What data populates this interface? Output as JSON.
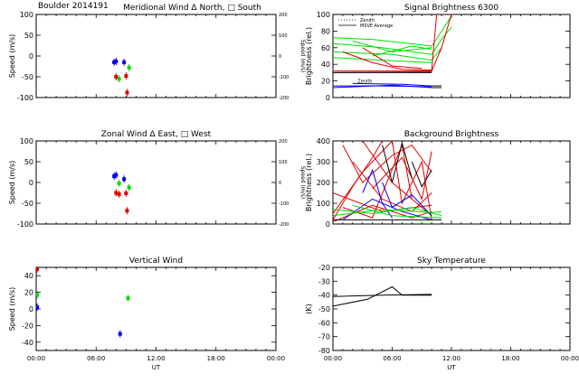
{
  "figure": {
    "header": "Boulder   2014191",
    "colors": {
      "red": "#e00000",
      "green": "#00dd00",
      "blue": "#0000ee",
      "black": "#000000"
    }
  },
  "chart_data": [
    {
      "id": "meridional",
      "type": "scatter",
      "title": "Meridional Wind   Δ North, □ South",
      "ylabel": "Speed (m/s)",
      "ylabel_right": "Speed (m/s)",
      "xlim": [
        0,
        24
      ],
      "ylim": [
        -100,
        100
      ],
      "ylim_right": [
        -200,
        200
      ],
      "yticks": [
        100,
        50,
        0,
        -50,
        -100
      ],
      "yticks_right": [
        200,
        100,
        0,
        -100,
        -200
      ],
      "series": [
        {
          "name": "blue",
          "color": "blue",
          "points": [
            [
              7.8,
              -15
            ],
            [
              8.0,
              -13
            ],
            [
              8.8,
              -15
            ]
          ]
        },
        {
          "name": "green",
          "color": "green",
          "points": [
            [
              8.3,
              -55
            ],
            [
              9.3,
              -28
            ]
          ]
        },
        {
          "name": "red",
          "color": "red",
          "points": [
            [
              8.0,
              -50
            ],
            [
              9.0,
              -48
            ],
            [
              9.1,
              -88
            ]
          ]
        }
      ]
    },
    {
      "id": "zonal",
      "type": "scatter",
      "title": "Zonal Wind     Δ East, □ West",
      "ylabel": "Speed (m/s)",
      "ylabel_right": "Speed (m/s)",
      "xlim": [
        0,
        24
      ],
      "ylim": [
        -100,
        100
      ],
      "ylim_right": [
        -200,
        200
      ],
      "yticks": [
        100,
        50,
        0,
        -50,
        -100
      ],
      "yticks_right": [
        200,
        100,
        0,
        -100,
        -200
      ],
      "series": [
        {
          "name": "blue",
          "color": "blue",
          "points": [
            [
              7.8,
              15
            ],
            [
              8.0,
              18
            ],
            [
              8.8,
              8
            ]
          ]
        },
        {
          "name": "green",
          "color": "green",
          "points": [
            [
              8.3,
              -2
            ],
            [
              9.3,
              -12
            ]
          ]
        },
        {
          "name": "red",
          "color": "red",
          "points": [
            [
              8.0,
              -25
            ],
            [
              8.3,
              -28
            ],
            [
              9.0,
              -26
            ],
            [
              9.1,
              -68
            ]
          ]
        }
      ]
    },
    {
      "id": "vertical",
      "type": "scatter",
      "title": "Vertical Wind",
      "ylabel": "Speed (m/s)",
      "xlabel": "UT",
      "xlim": [
        0,
        24
      ],
      "ylim": [
        -50,
        50
      ],
      "yticks": [
        40,
        20,
        0,
        -20,
        -40
      ],
      "xtick_labels": [
        "00:00",
        "06:00",
        "12:00",
        "18:00",
        "00:00"
      ],
      "series": [
        {
          "name": "red",
          "color": "red",
          "points": [
            [
              0.1,
              48
            ]
          ]
        },
        {
          "name": "green",
          "color": "green",
          "points": [
            [
              0.1,
              17
            ],
            [
              9.2,
              13
            ]
          ]
        },
        {
          "name": "blue",
          "color": "blue",
          "points": [
            [
              0.1,
              2
            ],
            [
              8.4,
              -30
            ]
          ]
        }
      ]
    },
    {
      "id": "signal",
      "type": "line",
      "title": "Signal Brightness        6300",
      "ylabel": "Brightness (rel.)",
      "xlim": [
        0,
        24
      ],
      "ylim": [
        0,
        100
      ],
      "yticks": [
        0,
        20,
        40,
        60,
        80,
        100
      ],
      "legend": {
        "entries": [
          "Zenith",
          "MSVE Average"
        ],
        "placement": "top-left"
      },
      "inline_label": "Zenith",
      "series": [
        {
          "name": "green-bundle",
          "color": "green",
          "lines": [
            [
              [
                0,
                72
              ],
              [
                4,
                70
              ],
              [
                10,
                62
              ],
              [
                11,
                80
              ],
              [
                12,
                98
              ]
            ],
            [
              [
                0,
                65
              ],
              [
                5,
                60
              ],
              [
                10,
                52
              ],
              [
                11,
                70
              ],
              [
                12,
                85
              ]
            ],
            [
              [
                0,
                55
              ],
              [
                6,
                52
              ],
              [
                10,
                45
              ],
              [
                11,
                60
              ]
            ],
            [
              [
                0,
                48
              ],
              [
                10,
                42
              ]
            ],
            [
              [
                2,
                68
              ],
              [
                6,
                55
              ],
              [
                10,
                60
              ]
            ],
            [
              [
                4,
                50
              ],
              [
                8,
                62
              ],
              [
                10,
                58
              ]
            ]
          ]
        },
        {
          "name": "red-bundle",
          "color": "red",
          "lines": [
            [
              [
                0,
                32
              ],
              [
                10,
                32
              ],
              [
                11,
                60
              ],
              [
                12,
                100
              ]
            ],
            [
              [
                0,
                30
              ],
              [
                10,
                31
              ]
            ],
            [
              [
                1,
                55
              ],
              [
                4,
                42
              ],
              [
                7,
                34
              ],
              [
                10,
                33
              ]
            ],
            [
              [
                3,
                60
              ],
              [
                6,
                38
              ],
              [
                9,
                35
              ]
            ],
            [
              [
                10,
                33
              ],
              [
                10.5,
                100
              ]
            ]
          ]
        },
        {
          "name": "blue-bundle",
          "color": "blue",
          "lines": [
            [
              [
                0,
                14
              ],
              [
                5,
                14
              ],
              [
                10,
                13
              ]
            ],
            [
              [
                0,
                12
              ],
              [
                6,
                15
              ],
              [
                10,
                12
              ]
            ],
            [
              [
                2,
                17
              ],
              [
                7,
                16
              ],
              [
                10,
                14
              ]
            ]
          ]
        },
        {
          "name": "black",
          "color": "black",
          "lines": [
            [
              [
                0,
                30
              ],
              [
                10,
                30
              ]
            ],
            [
              [
                10,
                12
              ],
              [
                11,
                12
              ]
            ],
            [
              [
                10,
                14
              ],
              [
                11,
                14
              ]
            ]
          ]
        }
      ]
    },
    {
      "id": "background",
      "type": "line",
      "title": "Background Brightness",
      "ylabel": "Brightness (rel.)",
      "xlim": [
        0,
        24
      ],
      "ylim": [
        0,
        400
      ],
      "yticks": [
        0,
        100,
        200,
        300,
        400
      ],
      "series": [
        {
          "name": "red-bundle",
          "color": "red",
          "lines": [
            [
              [
                0,
                20
              ],
              [
                2,
                180
              ],
              [
                4,
                320
              ],
              [
                5,
                400
              ]
            ],
            [
              [
                0,
                50
              ],
              [
                3,
                250
              ],
              [
                6,
                400
              ]
            ],
            [
              [
                1,
                80
              ],
              [
                4,
                30
              ],
              [
                7,
                380
              ],
              [
                8,
                120
              ]
            ],
            [
              [
                2,
                300
              ],
              [
                5,
                120
              ],
              [
                8,
                60
              ],
              [
                10,
                150
              ]
            ],
            [
              [
                3,
                400
              ],
              [
                6,
                200
              ],
              [
                9,
                80
              ],
              [
                10,
                40
              ]
            ],
            [
              [
                0,
                150
              ],
              [
                5,
                60
              ],
              [
                10,
                90
              ]
            ],
            [
              [
                6,
                400
              ],
              [
                7,
                100
              ],
              [
                9,
                300
              ],
              [
                10,
                20
              ]
            ],
            [
              [
                0,
                10
              ],
              [
                4,
                90
              ],
              [
                8,
                30
              ],
              [
                10,
                60
              ]
            ],
            [
              [
                1,
                380
              ],
              [
                3,
                200
              ],
              [
                6,
                330
              ],
              [
                8,
                380
              ],
              [
                10,
                250
              ]
            ],
            [
              [
                4,
                170
              ],
              [
                7,
                320
              ],
              [
                9,
                120
              ],
              [
                10,
                350
              ]
            ]
          ]
        },
        {
          "name": "blue-bundle",
          "color": "blue",
          "lines": [
            [
              [
                3,
                150
              ],
              [
                4,
                260
              ],
              [
                5,
                100
              ],
              [
                6,
                30
              ]
            ],
            [
              [
                1,
                20
              ],
              [
                4,
                120
              ],
              [
                7,
                60
              ],
              [
                10,
                20
              ]
            ],
            [
              [
                5,
                200
              ],
              [
                6,
                80
              ],
              [
                8,
                140
              ],
              [
                10,
                40
              ]
            ]
          ]
        },
        {
          "name": "green-bundle",
          "color": "green",
          "lines": [
            [
              [
                0,
                40
              ],
              [
                5,
                70
              ],
              [
                10,
                55
              ],
              [
                11,
                60
              ]
            ],
            [
              [
                0,
                70
              ],
              [
                4,
                50
              ],
              [
                8,
                80
              ],
              [
                11,
                40
              ]
            ],
            [
              [
                2,
                90
              ],
              [
                6,
                40
              ],
              [
                11,
                30
              ]
            ]
          ]
        },
        {
          "name": "black",
          "color": "black",
          "lines": [
            [
              [
                5,
                380
              ],
              [
                6,
                200
              ],
              [
                7,
                390
              ],
              [
                8,
                220
              ]
            ],
            [
              [
                8,
                300
              ],
              [
                9,
                180
              ],
              [
                10,
                260
              ]
            ],
            [
              [
                0,
                20
              ],
              [
                11,
                20
              ]
            ]
          ]
        }
      ]
    },
    {
      "id": "sky",
      "type": "line",
      "title": "Sky Temperature",
      "ylabel": "(K)",
      "xlabel": "UT",
      "xlim": [
        0,
        24
      ],
      "ylim": [
        -80,
        -20
      ],
      "yticks": [
        -20,
        -30,
        -40,
        -50,
        -60,
        -70,
        -80
      ],
      "xtick_labels": [
        "00:00",
        "06:00",
        "12:00",
        "18:00",
        "00:00"
      ],
      "series": [
        {
          "name": "sky",
          "color": "black",
          "lines": [
            [
              [
                0,
                -48
              ],
              [
                3.5,
                -43
              ],
              [
                6,
                -34
              ],
              [
                7,
                -40
              ],
              [
                10,
                -40
              ]
            ],
            [
              [
                0,
                -41
              ],
              [
                5,
                -40
              ],
              [
                10,
                -39.5
              ]
            ]
          ]
        }
      ]
    }
  ]
}
